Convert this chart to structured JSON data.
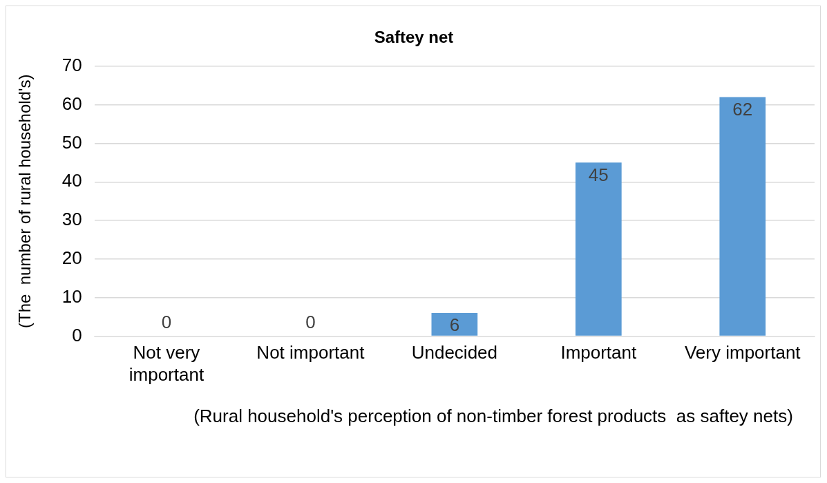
{
  "chart_data": {
    "type": "bar",
    "title": "Saftey net",
    "xlabel": "(Rural household's perception of non-timber forest products  as saftey nets)",
    "ylabel": "(The  number of rural household's)",
    "categories": [
      "Not very important",
      "Not important",
      "Undecided",
      "Important",
      "Very important"
    ],
    "values": [
      0,
      0,
      6,
      45,
      62
    ],
    "color": "#5b9bd5",
    "ylim": [
      0,
      70
    ],
    "yticks": [
      0,
      10,
      20,
      30,
      40,
      50,
      60,
      70
    ],
    "grid": "y",
    "legend": false,
    "data_labels": true
  }
}
